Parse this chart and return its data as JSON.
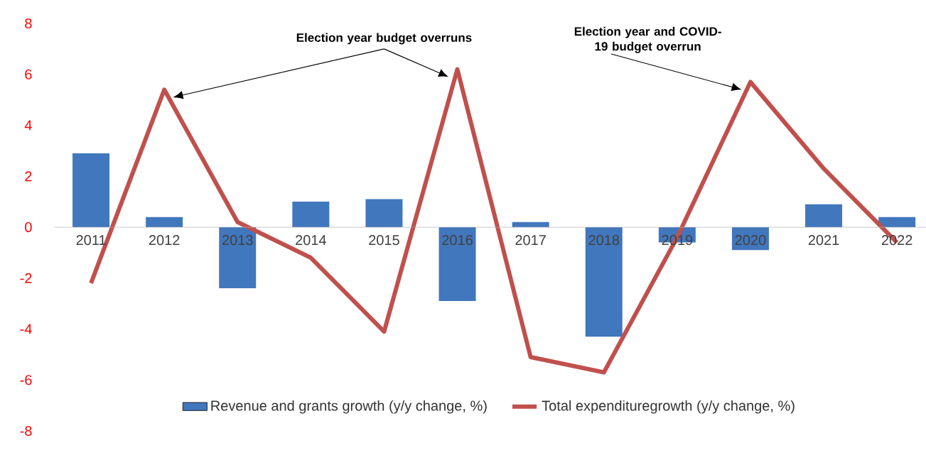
{
  "chart_data": {
    "type": "bar",
    "categories": [
      "2011",
      "2012",
      "2013",
      "2014",
      "2015",
      "2016",
      "2017",
      "2018",
      "2019",
      "2020",
      "2021",
      "2022"
    ],
    "series": [
      {
        "name": "Revenue and grants growth (y/y change, %)",
        "color": "#4177bd",
        "values": [
          2.9,
          0.4,
          -2.4,
          1.0,
          1.1,
          -2.9,
          0.2,
          -4.3,
          -0.6,
          -0.9,
          0.9,
          0.4
        ]
      },
      {
        "name": "Total expendituregrowth (y/y change, %)",
        "type": "line",
        "color": "#c0504d",
        "values": [
          -2.2,
          5.4,
          0.2,
          -1.2,
          -4.1,
          6.2,
          -5.1,
          -5.7,
          -0.4,
          5.7,
          2.3,
          -0.6
        ]
      }
    ],
    "ylim": [
      -8,
      8
    ],
    "yticks": [
      -8,
      -6,
      -4,
      -2,
      0,
      2,
      4,
      6,
      8
    ],
    "legend": "bottom",
    "grid": false,
    "annotations": [
      "Election year budget overruns",
      "Election year and COVID-19 budget overrun"
    ]
  }
}
